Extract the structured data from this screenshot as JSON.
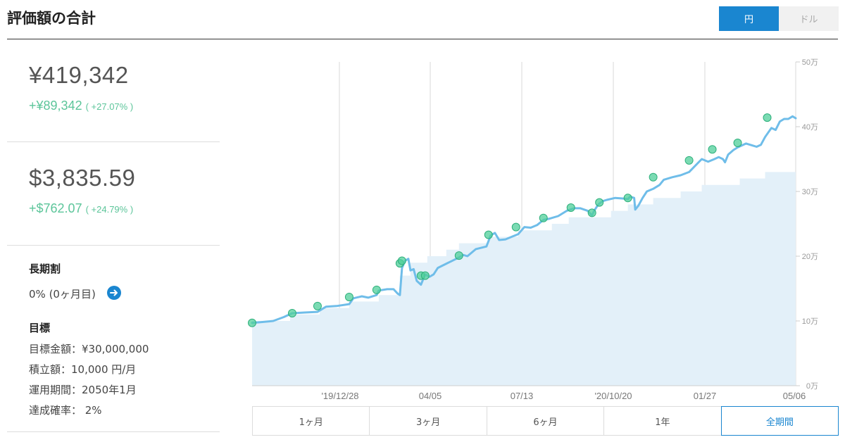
{
  "header": {
    "title": "評価額の合計"
  },
  "currency_toggle": {
    "yen_label": "円",
    "dollar_label": "ドル",
    "selected": "円"
  },
  "summary": {
    "yen_total": "¥419,342",
    "yen_gain": "+¥89,342",
    "yen_gain_pct": "( +27.07% )",
    "usd_total": "$3,835.59",
    "usd_gain": "+$762.07",
    "usd_gain_pct": "( +24.79% )"
  },
  "long_term": {
    "heading": "長期割",
    "value": "0% (0ヶ月目)",
    "icon": "arrow-right-icon"
  },
  "goal": {
    "heading": "目標",
    "target_amount": "目標金額：¥30,000,000",
    "monthly_deposit": "積立額：10,000 円/月",
    "period": "運用期間：2050年1月",
    "probability": "達成確率： 2%"
  },
  "range_tabs": [
    "1ヶ月",
    "3ヶ月",
    "6ヶ月",
    "1年",
    "全期間"
  ],
  "selected_range": "全期間",
  "colors": {
    "accent": "#1a86d0",
    "gain": "#5cc59a",
    "line": "#6fbde9",
    "area": "#e3f0f9",
    "marker": "#4fcf9a"
  },
  "chart_data": {
    "type": "line",
    "x_ticks": [
      "'19/12/28",
      "04/05",
      "07/13",
      "'20/10/20",
      "01/27",
      "05/06"
    ],
    "y_ticks": [
      "0万",
      "10万",
      "20万",
      "30万",
      "40万",
      "50万"
    ],
    "ylim": [
      0,
      500000
    ],
    "x_range_days": [
      0,
      515
    ],
    "series": [
      {
        "role": "valuation",
        "points": [
          [
            0,
            97000
          ],
          [
            8,
            98000
          ],
          [
            20,
            100000
          ],
          [
            30,
            106000
          ],
          [
            38,
            112000
          ],
          [
            50,
            113000
          ],
          [
            62,
            114000
          ],
          [
            70,
            122000
          ],
          [
            80,
            123000
          ],
          [
            92,
            126000
          ],
          [
            96,
            135000
          ],
          [
            104,
            138000
          ],
          [
            110,
            136000
          ],
          [
            118,
            140000
          ],
          [
            120,
            147000
          ],
          [
            128,
            149000
          ],
          [
            134,
            149000
          ],
          [
            138,
            142000
          ],
          [
            140,
            140000
          ],
          [
            142,
            182000
          ],
          [
            145,
            193000
          ],
          [
            148,
            196000
          ],
          [
            150,
            178000
          ],
          [
            153,
            180000
          ],
          [
            156,
            162000
          ],
          [
            160,
            156000
          ],
          [
            164,
            172000
          ],
          [
            168,
            168000
          ],
          [
            172,
            172000
          ],
          [
            176,
            182000
          ],
          [
            186,
            190000
          ],
          [
            196,
            198000
          ],
          [
            200,
            202000
          ],
          [
            204,
            200000
          ],
          [
            212,
            211000
          ],
          [
            222,
            215000
          ],
          [
            226,
            232000
          ],
          [
            230,
            236000
          ],
          [
            234,
            225000
          ],
          [
            240,
            226000
          ],
          [
            246,
            230000
          ],
          [
            252,
            234000
          ],
          [
            258,
            245000
          ],
          [
            264,
            244000
          ],
          [
            270,
            248000
          ],
          [
            276,
            256000
          ],
          [
            282,
            258000
          ],
          [
            290,
            262000
          ],
          [
            298,
            270000
          ],
          [
            305,
            274000
          ],
          [
            311,
            274000
          ],
          [
            318,
            270000
          ],
          [
            322,
            263000
          ],
          [
            324,
            270000
          ],
          [
            328,
            280000
          ],
          [
            332,
            285000
          ],
          [
            336,
            287000
          ],
          [
            344,
            290000
          ],
          [
            352,
            289000
          ],
          [
            356,
            288000
          ],
          [
            358,
            292000
          ],
          [
            362,
            290000
          ],
          [
            363,
            272000
          ],
          [
            366,
            278000
          ],
          [
            370,
            290000
          ],
          [
            374,
            300000
          ],
          [
            380,
            304000
          ],
          [
            386,
            310000
          ],
          [
            390,
            318000
          ],
          [
            398,
            322000
          ],
          [
            406,
            325000
          ],
          [
            414,
            330000
          ],
          [
            420,
            340000
          ],
          [
            426,
            350000
          ],
          [
            432,
            346000
          ],
          [
            438,
            350000
          ],
          [
            442,
            353000
          ],
          [
            446,
            350000
          ],
          [
            448,
            345000
          ],
          [
            451,
            357000
          ],
          [
            456,
            364000
          ],
          [
            460,
            368000
          ],
          [
            468,
            374000
          ],
          [
            474,
            371000
          ],
          [
            478,
            369000
          ],
          [
            482,
            372000
          ],
          [
            486,
            384000
          ],
          [
            492,
            398000
          ],
          [
            496,
            395000
          ],
          [
            500,
            408000
          ],
          [
            504,
            412000
          ],
          [
            508,
            412000
          ],
          [
            512,
            416000
          ],
          [
            515,
            413000
          ]
        ]
      },
      {
        "role": "deposits",
        "points": [
          [
            0,
            100000
          ],
          [
            36,
            110000
          ],
          [
            64,
            120000
          ],
          [
            92,
            130000
          ],
          [
            120,
            140000
          ],
          [
            140,
            170000
          ],
          [
            150,
            190000
          ],
          [
            166,
            200000
          ],
          [
            184,
            210000
          ],
          [
            196,
            220000
          ],
          [
            224,
            230000
          ],
          [
            252,
            240000
          ],
          [
            284,
            250000
          ],
          [
            300,
            260000
          ],
          [
            340,
            270000
          ],
          [
            356,
            280000
          ],
          [
            380,
            290000
          ],
          [
            406,
            300000
          ],
          [
            426,
            310000
          ],
          [
            462,
            320000
          ],
          [
            486,
            330000
          ],
          [
            515,
            330000
          ]
        ]
      }
    ],
    "markers": [
      [
        0,
        97000
      ],
      [
        38,
        112000
      ],
      [
        62,
        123000
      ],
      [
        92,
        137000
      ],
      [
        118,
        148000
      ],
      [
        140,
        189000
      ],
      [
        142,
        193000
      ],
      [
        160,
        170000
      ],
      [
        164,
        170000
      ],
      [
        196,
        201000
      ],
      [
        224,
        233000
      ],
      [
        250,
        245000
      ],
      [
        276,
        259000
      ],
      [
        302,
        275000
      ],
      [
        322,
        267000
      ],
      [
        329,
        283000
      ],
      [
        356,
        290000
      ],
      [
        380,
        322000
      ],
      [
        414,
        348000
      ],
      [
        436,
        365000
      ],
      [
        460,
        375000
      ],
      [
        488,
        414000
      ]
    ]
  }
}
